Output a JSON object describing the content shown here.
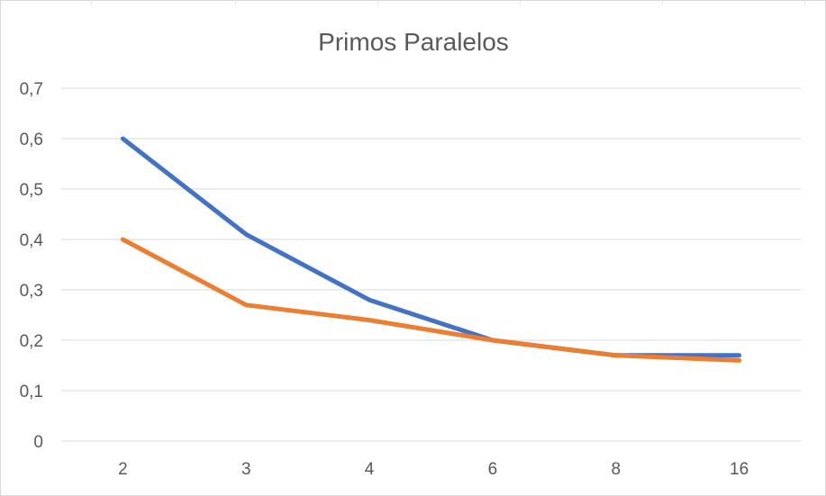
{
  "chart_data": {
    "type": "line",
    "title": "Primos Paralelos",
    "xlabel": "",
    "ylabel": "",
    "categories": [
      "2",
      "3",
      "4",
      "6",
      "8",
      "16"
    ],
    "series": [
      {
        "values": [
          0.6,
          0.41,
          0.28,
          0.2,
          0.17,
          0.17
        ],
        "color": "#4472c4"
      },
      {
        "values": [
          0.4,
          0.27,
          0.24,
          0.2,
          0.17,
          0.16
        ],
        "color": "#ed7d31"
      }
    ],
    "ylim": [
      0,
      0.7
    ],
    "yticks": [
      0,
      0.1,
      0.2,
      0.3,
      0.4,
      0.5,
      0.6,
      0.7
    ],
    "ytick_labels": [
      "0",
      "0,1",
      "0,2",
      "0,3",
      "0,4",
      "0,5",
      "0,6",
      "0,7"
    ],
    "grid": true,
    "legend": "none"
  }
}
